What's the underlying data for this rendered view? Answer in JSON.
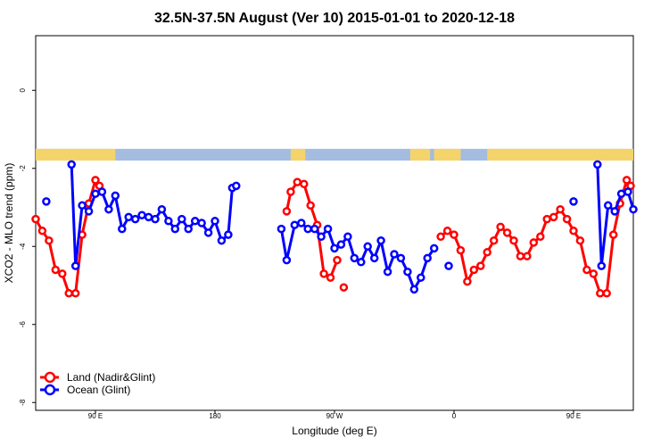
{
  "chart_data": {
    "type": "line",
    "title": "32.5N-37.5N August (Ver 10)   2015-01-01 to 2020-12-18",
    "xlabel": "Longitude (deg E)",
    "ylabel": "XCO2 - MLO trend (ppm)",
    "xlim": [
      -45,
      405
    ],
    "ylim": [
      -8.2,
      1.4
    ],
    "x_ticks": [
      {
        "value": 0,
        "label": "90 E"
      },
      {
        "value": 90,
        "label": "180"
      },
      {
        "value": 180,
        "label": "90 W"
      },
      {
        "value": 270,
        "label": "0"
      },
      {
        "value": 360,
        "label": "90 E"
      },
      {
        "value": 450,
        "label": "180"
      }
    ],
    "y_ticks": [
      {
        "value": 0,
        "label": "0"
      },
      {
        "value": -2,
        "label": "-2"
      },
      {
        "value": -4,
        "label": "-4"
      },
      {
        "value": -6,
        "label": "-6"
      },
      {
        "value": -8,
        "label": "-8"
      }
    ],
    "land_band": {
      "y_top": -1.5,
      "y_bottom": -1.8,
      "land_color": "#f5d36b",
      "ocean_color": "#a3bce0",
      "land_segments": [
        [
          -45,
          15
        ],
        [
          147,
          158
        ],
        [
          237,
          252
        ],
        [
          255,
          275
        ],
        [
          295,
          405
        ]
      ]
    },
    "series": [
      {
        "name": "Land (Nadir&Glint)",
        "color": "#ff0000",
        "segments": [
          [
            [
              -45,
              -3.3
            ],
            [
              -40,
              -3.6
            ],
            [
              -35,
              -3.85
            ],
            [
              -30,
              -4.6
            ],
            [
              -25,
              -4.7
            ],
            [
              -20,
              -5.2
            ],
            [
              -15,
              -5.2
            ],
            [
              -10,
              -3.7
            ],
            [
              -5,
              -2.9
            ],
            [
              0,
              -2.3
            ],
            [
              3,
              -2.45
            ]
          ],
          [
            [
              144,
              -3.1
            ],
            [
              147,
              -2.6
            ],
            [
              152,
              -2.35
            ],
            [
              157,
              -2.4
            ],
            [
              162,
              -2.95
            ],
            [
              167,
              -3.45
            ],
            [
              172,
              -4.7
            ],
            [
              177,
              -4.8
            ],
            [
              182,
              -4.35
            ]
          ],
          [
            [
              187,
              -5.05
            ]
          ],
          [
            [
              260,
              -3.75
            ],
            [
              265,
              -3.6
            ],
            [
              270,
              -3.7
            ],
            [
              275,
              -4.1
            ],
            [
              280,
              -4.9
            ],
            [
              285,
              -4.6
            ],
            [
              290,
              -4.5
            ],
            [
              295,
              -4.15
            ],
            [
              300,
              -3.85
            ],
            [
              305,
              -3.5
            ],
            [
              310,
              -3.65
            ],
            [
              315,
              -3.85
            ],
            [
              320,
              -4.25
            ],
            [
              325,
              -4.25
            ],
            [
              330,
              -3.9
            ],
            [
              335,
              -3.75
            ],
            [
              340,
              -3.3
            ],
            [
              345,
              -3.25
            ],
            [
              350,
              -3.05
            ],
            [
              355,
              -3.3
            ],
            [
              360,
              -3.6
            ],
            [
              365,
              -3.85
            ],
            [
              370,
              -4.6
            ],
            [
              375,
              -4.7
            ],
            [
              380,
              -5.2
            ],
            [
              385,
              -5.2
            ],
            [
              390,
              -3.7
            ],
            [
              395,
              -2.9
            ],
            [
              400,
              -2.3
            ],
            [
              403,
              -2.45
            ]
          ]
        ]
      },
      {
        "name": "Ocean (Glint)",
        "color": "#0000ff",
        "segments": [
          [
            [
              -37,
              -2.85
            ]
          ],
          [
            [
              -18,
              -1.9
            ],
            [
              -15,
              -4.5
            ],
            [
              -10,
              -2.95
            ],
            [
              -5,
              -3.1
            ],
            [
              0,
              -2.65
            ],
            [
              5,
              -2.6
            ],
            [
              10,
              -3.05
            ],
            [
              15,
              -2.7
            ],
            [
              20,
              -3.55
            ],
            [
              25,
              -3.25
            ],
            [
              30,
              -3.3
            ],
            [
              35,
              -3.2
            ],
            [
              40,
              -3.25
            ],
            [
              45,
              -3.3
            ],
            [
              50,
              -3.05
            ],
            [
              55,
              -3.35
            ],
            [
              60,
              -3.55
            ],
            [
              65,
              -3.3
            ],
            [
              70,
              -3.55
            ],
            [
              75,
              -3.35
            ],
            [
              80,
              -3.4
            ],
            [
              85,
              -3.65
            ],
            [
              90,
              -3.35
            ],
            [
              95,
              -3.85
            ],
            [
              100,
              -3.7
            ],
            [
              103,
              -2.5
            ],
            [
              106,
              -2.45
            ]
          ],
          [
            [
              140,
              -3.55
            ],
            [
              144,
              -4.35
            ],
            [
              150,
              -3.45
            ],
            [
              155,
              -3.4
            ],
            [
              160,
              -3.55
            ],
            [
              165,
              -3.55
            ],
            [
              170,
              -3.75
            ],
            [
              175,
              -3.55
            ],
            [
              180,
              -4.05
            ],
            [
              185,
              -3.95
            ],
            [
              190,
              -3.75
            ],
            [
              195,
              -4.3
            ],
            [
              200,
              -4.4
            ],
            [
              205,
              -4.0
            ],
            [
              210,
              -4.3
            ],
            [
              215,
              -3.85
            ],
            [
              220,
              -4.65
            ],
            [
              225,
              -4.2
            ],
            [
              230,
              -4.3
            ],
            [
              235,
              -4.65
            ],
            [
              240,
              -5.1
            ],
            [
              245,
              -4.8
            ],
            [
              250,
              -4.3
            ],
            [
              255,
              -4.05
            ]
          ],
          [
            [
              266,
              -4.5
            ]
          ],
          [
            [
              360,
              -2.85
            ]
          ],
          [
            [
              378,
              -1.9
            ],
            [
              381,
              -4.5
            ],
            [
              386,
              -2.95
            ],
            [
              391,
              -3.1
            ],
            [
              396,
              -2.65
            ],
            [
              401,
              -2.6
            ],
            [
              405,
              -3.05
            ]
          ]
        ]
      }
    ],
    "legend": {
      "position": "bottom-left",
      "entries": [
        "Land (Nadir&Glint)",
        "Ocean (Glint)"
      ]
    }
  }
}
